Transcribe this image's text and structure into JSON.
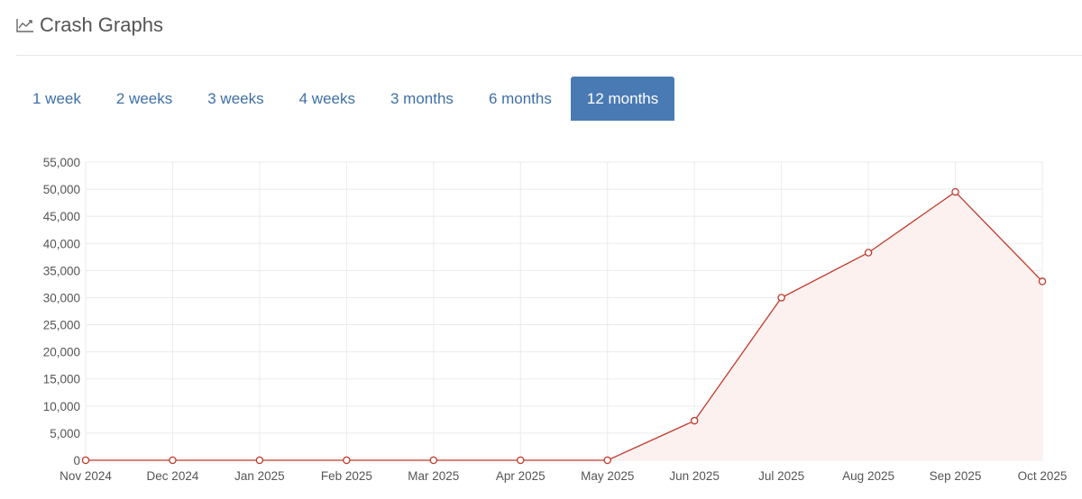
{
  "header": {
    "title": "Crash Graphs",
    "icon": "line-chart-icon"
  },
  "tabs": [
    {
      "label": "1 week",
      "active": false
    },
    {
      "label": "2 weeks",
      "active": false
    },
    {
      "label": "3 weeks",
      "active": false
    },
    {
      "label": "4 weeks",
      "active": false
    },
    {
      "label": "3 months",
      "active": false
    },
    {
      "label": "6 months",
      "active": false
    },
    {
      "label": "12 months",
      "active": true
    }
  ],
  "colors": {
    "accent": "#4a7ab4",
    "tab_text": "#3f6fa8",
    "series_line": "#c0392b",
    "series_fill": "#fdf1f0",
    "grid": "#ebebeb"
  },
  "chart_data": {
    "type": "area",
    "title": "",
    "xlabel": "",
    "ylabel": "",
    "categories": [
      "Nov 2024",
      "Dec 2024",
      "Jan 2025",
      "Feb 2025",
      "Mar 2025",
      "Apr 2025",
      "May 2025",
      "Jun 2025",
      "Jul 2025",
      "Aug 2025",
      "Sep 2025",
      "Oct 2025"
    ],
    "series": [
      {
        "values": [
          0,
          0,
          0,
          0,
          0,
          0,
          0,
          7300,
          30000,
          38300,
          49500,
          33000
        ]
      }
    ],
    "ylim": [
      0,
      55000
    ],
    "yticks": [
      "0",
      "5,000",
      "10,000",
      "15,000",
      "20,000",
      "25,000",
      "30,000",
      "35,000",
      "40,000",
      "45,000",
      "50,000",
      "55,000"
    ],
    "ytick_values": [
      0,
      5000,
      10000,
      15000,
      20000,
      25000,
      30000,
      35000,
      40000,
      45000,
      50000,
      55000
    ],
    "grid": true,
    "legend": "none"
  }
}
